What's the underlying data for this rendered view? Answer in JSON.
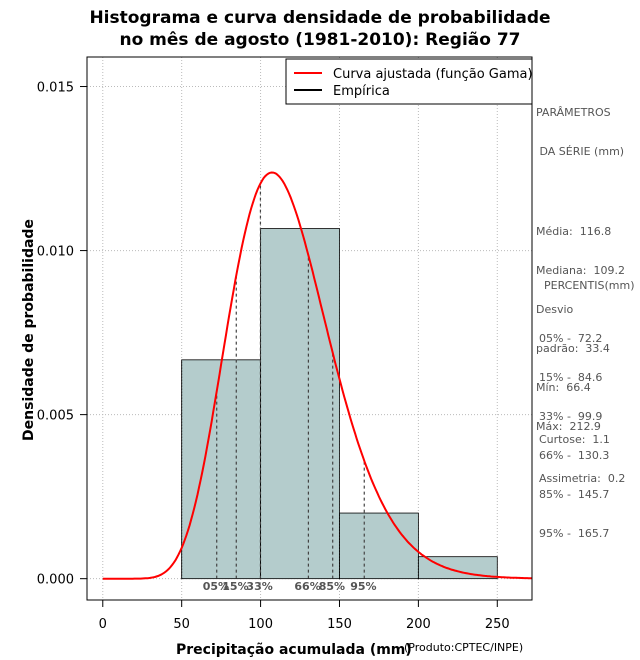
{
  "title_line1": "Histograma e curva densidade de probabilidade",
  "title_line2": "no mês de agosto (1981-2010): Região 77",
  "credit": "(Produto:CPTEC/INPE)",
  "chart_data": {
    "type": "bar",
    "title": "Histograma e curva densidade de probabilidade no mês de agosto (1981-2010): Região 77",
    "xlabel": "Precipitação acumulada (mm)",
    "ylabel": "Densidade de probabilidade",
    "xlim": [
      -10,
      272
    ],
    "ylim": [
      -0.00065,
      0.0159
    ],
    "xticks": [
      0,
      50,
      100,
      150,
      200,
      250
    ],
    "yticks": [
      0.0,
      0.005,
      0.01,
      0.015
    ],
    "ytick_labels": [
      "0.000",
      "0.005",
      "0.010",
      "0.015"
    ],
    "grid": true,
    "bins": [
      {
        "from": 50,
        "to": 100,
        "density": 0.00667
      },
      {
        "from": 100,
        "to": 150,
        "density": 0.01067
      },
      {
        "from": 150,
        "to": 200,
        "density": 0.002
      },
      {
        "from": 200,
        "to": 250,
        "density": 0.00067
      }
    ],
    "bar_color": "#b4cccc",
    "curve_color": "#ff0000",
    "fitted_curve": {
      "name": "Curva ajustada (função Gama)",
      "shape": 12.24,
      "scale": 9.54
    },
    "legend": [
      {
        "label": "Curva ajustada (função Gama)",
        "color": "#ff0000"
      },
      {
        "label": "Empírica",
        "color": "#000000"
      }
    ],
    "legend_position": "top-right",
    "percentile_lines": [
      {
        "label": "05%",
        "x": 72.2
      },
      {
        "label": "15%",
        "x": 84.6
      },
      {
        "label": "33%",
        "x": 99.9
      },
      {
        "label": "66%",
        "x": 130.3
      },
      {
        "label": "85%",
        "x": 145.7
      },
      {
        "label": "95%",
        "x": 165.7
      }
    ]
  },
  "params": {
    "heading1": "PARÂMETROS",
    "heading2": " DA SÉRIE (mm)",
    "lines": [
      "Média:  116.8",
      "Mediana:  109.2",
      "Desvio",
      "padrão:  33.4",
      "Mín:  66.4",
      "Máx:  212.9"
    ]
  },
  "percentis": {
    "heading": "PERCENTIS(mm)",
    "lines": [
      "05% -  72.2",
      "15% -  84.6",
      "33% -  99.9",
      "66% -  130.3",
      "85% -  145.7",
      "95% -  165.7"
    ]
  },
  "stats": {
    "lines": [
      "Curtose:  1.1",
      "Assimetria:  0.2"
    ]
  }
}
